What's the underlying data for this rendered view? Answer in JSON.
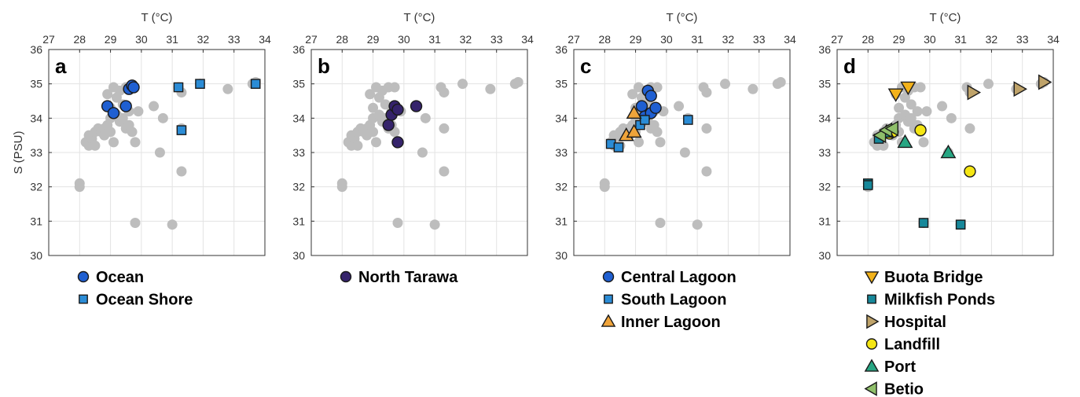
{
  "chart_data": {
    "type": "scatter",
    "xlabel": "T (°C)",
    "ylabel": "S (PSU)",
    "xlim": [
      27,
      34
    ],
    "ylim": [
      30,
      36
    ],
    "xticks": [
      "27",
      "28",
      "29",
      "30",
      "31",
      "32",
      "33",
      "34"
    ],
    "yticks": [
      "30",
      "31",
      "32",
      "33",
      "34",
      "35",
      "36"
    ],
    "grid": true,
    "legend_position": "below",
    "background_color": "#bdbdbd",
    "background_points": [
      [
        28.0,
        32.0
      ],
      [
        28.0,
        32.1
      ],
      [
        28.2,
        33.3
      ],
      [
        28.3,
        33.5
      ],
      [
        28.3,
        33.2
      ],
      [
        28.4,
        33.4
      ],
      [
        28.5,
        33.6
      ],
      [
        28.5,
        33.2
      ],
      [
        28.6,
        33.7
      ],
      [
        28.7,
        33.6
      ],
      [
        28.8,
        33.5
      ],
      [
        28.8,
        33.7
      ],
      [
        28.9,
        33.8
      ],
      [
        28.9,
        34.7
      ],
      [
        29.0,
        34.0
      ],
      [
        29.0,
        34.3
      ],
      [
        29.0,
        33.6
      ],
      [
        29.1,
        34.9
      ],
      [
        29.1,
        33.3
      ],
      [
        29.2,
        34.6
      ],
      [
        29.2,
        34.1
      ],
      [
        29.3,
        34.8
      ],
      [
        29.3,
        33.9
      ],
      [
        29.4,
        34.4
      ],
      [
        29.4,
        34.0
      ],
      [
        29.5,
        33.7
      ],
      [
        29.5,
        34.9
      ],
      [
        29.6,
        34.2
      ],
      [
        29.6,
        33.8
      ],
      [
        29.7,
        33.6
      ],
      [
        29.7,
        34.9
      ],
      [
        29.8,
        33.3
      ],
      [
        29.8,
        30.95
      ],
      [
        29.9,
        34.2
      ],
      [
        30.4,
        34.35
      ],
      [
        30.6,
        33.0
      ],
      [
        30.7,
        34.0
      ],
      [
        31.0,
        30.9
      ],
      [
        31.2,
        34.9
      ],
      [
        31.3,
        34.75
      ],
      [
        31.3,
        33.7
      ],
      [
        31.3,
        32.45
      ],
      [
        31.9,
        35.0
      ],
      [
        32.8,
        34.85
      ],
      [
        33.6,
        35.0
      ],
      [
        33.7,
        35.05
      ]
    ],
    "panels": [
      {
        "label": "a",
        "series": [
          {
            "name": "Ocean",
            "marker": "circle",
            "color": "#1f5fd1",
            "points": [
              [
                28.9,
                34.35
              ],
              [
                29.1,
                34.15
              ],
              [
                29.5,
                34.35
              ],
              [
                29.6,
                34.85
              ],
              [
                29.7,
                34.95
              ],
              [
                29.75,
                34.9
              ]
            ]
          },
          {
            "name": "Ocean Shore",
            "marker": "square",
            "color": "#2b8cd6",
            "points": [
              [
                31.2,
                34.9
              ],
              [
                31.9,
                35.0
              ],
              [
                31.3,
                33.65
              ],
              [
                33.7,
                35.0
              ]
            ]
          }
        ]
      },
      {
        "label": "b",
        "series": [
          {
            "name": "North Tarawa",
            "marker": "circle",
            "color": "#35236b",
            "points": [
              [
                29.5,
                33.8
              ],
              [
                29.6,
                34.1
              ],
              [
                29.7,
                34.35
              ],
              [
                29.8,
                34.25
              ],
              [
                29.8,
                33.3
              ],
              [
                30.4,
                34.35
              ]
            ]
          }
        ]
      },
      {
        "label": "c",
        "series": [
          {
            "name": "Central Lagoon",
            "marker": "circle",
            "color": "#1f5fd1",
            "points": [
              [
                29.2,
                34.35
              ],
              [
                29.3,
                34.05
              ],
              [
                29.4,
                34.8
              ],
              [
                29.5,
                34.65
              ],
              [
                29.5,
                34.15
              ],
              [
                29.65,
                34.3
              ]
            ]
          },
          {
            "name": "South Lagoon",
            "marker": "square",
            "color": "#2b8cd6",
            "points": [
              [
                28.2,
                33.25
              ],
              [
                28.45,
                33.15
              ],
              [
                29.15,
                33.8
              ],
              [
                29.3,
                33.95
              ],
              [
                30.7,
                33.95
              ]
            ]
          },
          {
            "name": "Inner Lagoon",
            "marker": "triangle-up",
            "color": "#f0a43a",
            "points": [
              [
                28.7,
                33.5
              ],
              [
                28.95,
                33.6
              ],
              [
                28.95,
                34.15
              ]
            ]
          }
        ]
      },
      {
        "label": "d",
        "series": [
          {
            "name": "Buota Bridge",
            "marker": "triangle-down",
            "color": "#f3b21a",
            "points": [
              [
                28.9,
                34.7
              ],
              [
                29.3,
                34.9
              ]
            ]
          },
          {
            "name": "Milkfish Ponds",
            "marker": "square",
            "color": "#17889a",
            "points": [
              [
                28.0,
                32.1
              ],
              [
                28.0,
                32.05
              ],
              [
                28.35,
                33.4
              ],
              [
                29.8,
                30.95
              ],
              [
                31.0,
                30.9
              ]
            ]
          },
          {
            "name": "Hospital",
            "marker": "triangle-right",
            "color": "#bfa36a",
            "points": [
              [
                31.4,
                34.75
              ],
              [
                32.9,
                34.85
              ],
              [
                33.7,
                35.05
              ]
            ]
          },
          {
            "name": "Landfill",
            "marker": "circle",
            "color": "#f5e613",
            "points": [
              [
                28.7,
                33.55
              ],
              [
                28.8,
                33.6
              ],
              [
                29.7,
                33.65
              ],
              [
                31.3,
                32.45
              ]
            ]
          },
          {
            "name": "Port",
            "marker": "triangle-up",
            "color": "#27a683",
            "points": [
              [
                29.2,
                33.3
              ],
              [
                30.6,
                33.0
              ],
              [
                28.6,
                33.6
              ]
            ]
          },
          {
            "name": "Betio",
            "marker": "triangle-left",
            "color": "#8fbf6a",
            "points": [
              [
                28.4,
                33.5
              ],
              [
                28.6,
                33.65
              ],
              [
                28.8,
                33.7
              ]
            ]
          }
        ]
      }
    ]
  }
}
